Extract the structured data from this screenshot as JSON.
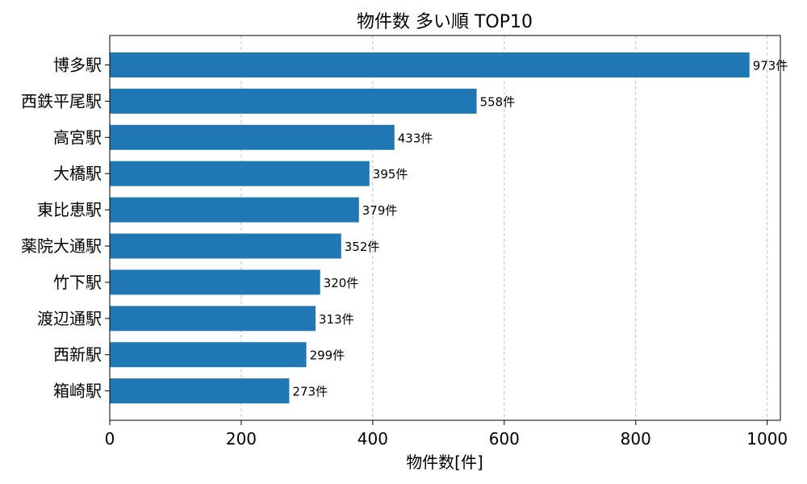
{
  "chart_data": {
    "type": "bar",
    "orientation": "horizontal",
    "title": "物件数 多い順 TOP10",
    "xlabel": "物件数[件]",
    "ylabel": "",
    "categories": [
      "博多駅",
      "西鉄平尾駅",
      "高宮駅",
      "大橋駅",
      "東比恵駅",
      "薬院大通駅",
      "竹下駅",
      "渡辺通駅",
      "西新駅",
      "箱崎駅"
    ],
    "values": [
      973,
      558,
      433,
      395,
      379,
      352,
      320,
      313,
      299,
      273
    ],
    "value_labels": [
      "973件",
      "558件",
      "433件",
      "395件",
      "379件",
      "352件",
      "320件",
      "313件",
      "299件",
      "273件"
    ],
    "xlim": [
      0,
      1020
    ],
    "xticks": [
      0,
      200,
      400,
      600,
      800,
      1000
    ],
    "xtick_labels": [
      "0",
      "200",
      "400",
      "600",
      "800",
      "1000"
    ],
    "grid": "vertical-dashed",
    "bar_color": "#1f77b4"
  }
}
